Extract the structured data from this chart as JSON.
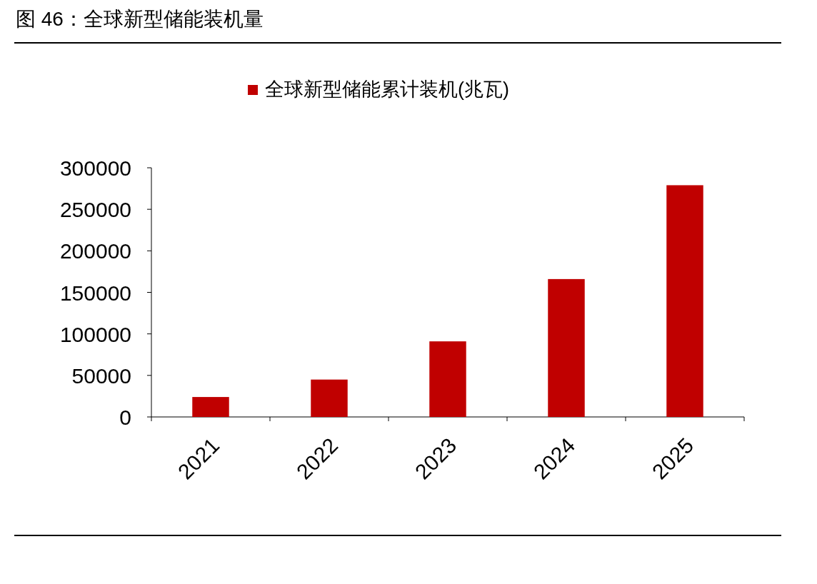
{
  "chart_data": {
    "type": "bar",
    "title": "图 46：全球新型储能装机量",
    "categories": [
      "2021",
      "2022",
      "2023",
      "2024",
      "2025"
    ],
    "series": [
      {
        "name": "全球新型储能累计装机(兆瓦)",
        "color": "#c00000",
        "values": [
          24000,
          45000,
          91000,
          166000,
          279000
        ]
      }
    ],
    "ylim": [
      0,
      300000
    ],
    "yticks": [
      0,
      50000,
      100000,
      150000,
      200000,
      250000,
      300000
    ],
    "grid": false,
    "legend": "top"
  }
}
